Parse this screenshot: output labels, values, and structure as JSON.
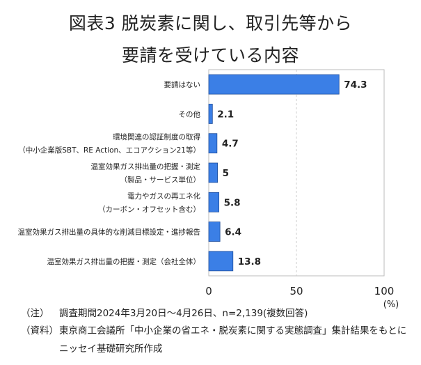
{
  "title_line1": "図表3 脱炭素に関し、取引先等から",
  "title_line2": "要請を受けている内容",
  "chart_data": {
    "type": "bar",
    "orientation": "horizontal",
    "categories": [
      [
        "要請はない"
      ],
      [
        "その他"
      ],
      [
        "環境関連の認証制度の取得",
        "（中小企業版SBT、RE Action、エコアクション21等）"
      ],
      [
        "温室効果ガス排出量の把握・測定",
        "（製品・サービス単位）"
      ],
      [
        "電力やガスの再エネ化",
        "（カーボン・オフセット含む）"
      ],
      [
        "温室効果ガス排出量の具体的な削減目標設定・進捗報告"
      ],
      [
        "温室効果ガス排出量の把握・測定（会社全体）"
      ]
    ],
    "values": [
      74.3,
      2.1,
      4.7,
      5,
      5.8,
      6.4,
      13.8
    ],
    "value_labels": [
      "74.3",
      "2.1",
      "4.7",
      "5",
      "5.8",
      "6.4",
      "13.8"
    ],
    "xlim": [
      0,
      100
    ],
    "xticks": [
      "0",
      "50",
      "100"
    ],
    "xunit": "(%)",
    "grid": "vertical dashed at 50 and 100",
    "bar_color": "#3b7fe6",
    "bar_edge_color": "#1f4e9a"
  },
  "notes": {
    "note_label": "（注）",
    "note_text": "調査期間2024年3月20日～4月26日、n=2,139(複数回答)",
    "source_label": "（資料）",
    "source_text": "東京商工会議所「中小企業の省エネ・脱炭素に関する実態調査」集計結果をもとに",
    "source_text2": "ニッセイ基礎研究所作成"
  }
}
